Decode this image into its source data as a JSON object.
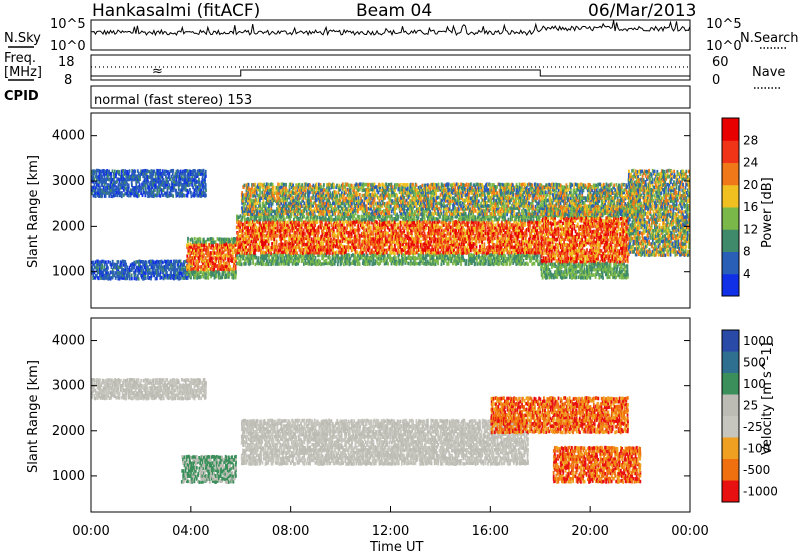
{
  "header": {
    "station": "Hankasalmi (fitACF)",
    "beam": "Beam 04",
    "date": "06/Mar/2013"
  },
  "strips": {
    "nsky_label": "N.Sky",
    "nsearch_label": "N.Search",
    "count_ticks": [
      "10^5",
      "10^0"
    ],
    "freq_label_line1": "Freq.",
    "freq_label_line2": "[MHz]",
    "freq_ticks": [
      "18",
      "8"
    ],
    "nave_label": "Nave",
    "nave_ticks": [
      "60",
      "0"
    ],
    "cpid_label": "CPID",
    "cpid_text": "normal (fast stereo) 153"
  },
  "chart_data": [
    {
      "type": "heatmap",
      "panel": "power",
      "ylabel": "Slant Range [km]",
      "ylim": [
        200,
        4500
      ],
      "yticks": [
        1000,
        2000,
        3000,
        4000
      ],
      "xlim_hours": [
        0,
        24
      ],
      "colorbar": {
        "label": "Power [dB]",
        "ticks": [
          "4",
          "8",
          "12",
          "16",
          "20",
          "24",
          "28"
        ],
        "colors": [
          "#1030e8",
          "#2a5fb8",
          "#3f8a6a",
          "#7ab84a",
          "#f0c020",
          "#f07818",
          "#f03418",
          "#e80000"
        ]
      },
      "bands": [
        {
          "t0": 0.0,
          "t1": 4.0,
          "r0": 880,
          "r1": 1300,
          "level": "low"
        },
        {
          "t0": 0.0,
          "t1": 4.6,
          "r0": 2700,
          "r1": 3300,
          "level": "low"
        },
        {
          "t0": 3.8,
          "t1": 5.8,
          "r0": 900,
          "r1": 1800,
          "level": "high"
        },
        {
          "t0": 5.8,
          "t1": 18.0,
          "r0": 1200,
          "r1": 2300,
          "level": "high"
        },
        {
          "t0": 18.0,
          "t1": 21.5,
          "r0": 900,
          "r1": 2500,
          "level": "high"
        },
        {
          "t0": 6.0,
          "t1": 22.0,
          "r0": 2300,
          "r1": 3000,
          "level": "mixed"
        },
        {
          "t0": 21.5,
          "t1": 24.0,
          "r0": 1400,
          "r1": 3300,
          "level": "mixed"
        }
      ]
    },
    {
      "type": "heatmap",
      "panel": "velocity",
      "ylabel": "Slant Range [km]",
      "xlabel": "Time UT",
      "ylim": [
        200,
        4500
      ],
      "yticks": [
        1000,
        2000,
        3000,
        4000
      ],
      "xlim_hours": [
        0,
        24
      ],
      "xticks": [
        "00:00",
        "04:00",
        "08:00",
        "12:00",
        "16:00",
        "20:00",
        "00:00"
      ],
      "colorbar": {
        "label": "Velocity [m s^-1]",
        "ticks": [
          "1000",
          "500",
          "100",
          "25",
          "-25",
          "-100",
          "-500",
          "-1000"
        ],
        "colors": [
          "#2a4aa8",
          "#2f6f8f",
          "#3a8f5a",
          "#bcbcb4",
          "#c6c6be",
          "#f0a020",
          "#f07010",
          "#e81010"
        ]
      },
      "bands": [
        {
          "t0": 0.0,
          "t1": 4.6,
          "r0": 2750,
          "r1": 3200,
          "level": "ground"
        },
        {
          "t0": 3.6,
          "t1": 5.8,
          "r0": 900,
          "r1": 1500,
          "level": "positive"
        },
        {
          "t0": 6.0,
          "t1": 17.5,
          "r0": 1300,
          "r1": 2300,
          "level": "ground"
        },
        {
          "t0": 16.0,
          "t1": 21.5,
          "r0": 2000,
          "r1": 2800,
          "level": "negative"
        },
        {
          "t0": 18.5,
          "t1": 22.0,
          "r0": 900,
          "r1": 1700,
          "level": "negative"
        }
      ]
    }
  ]
}
